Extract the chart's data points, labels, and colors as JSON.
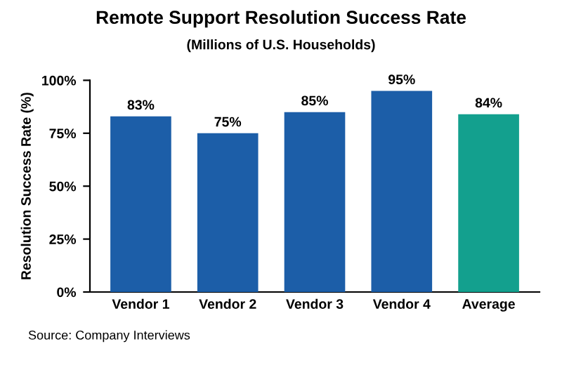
{
  "chart_data": {
    "type": "bar",
    "title": "Remote Support Resolution Success Rate",
    "subtitle": "(Millions of U.S. Households)",
    "ylabel": "Resolution Success Rate (%)",
    "categories": [
      "Vendor 1",
      "Vendor 2",
      "Vendor 3",
      "Vendor 4",
      "Average"
    ],
    "values": [
      83,
      75,
      85,
      95,
      84
    ],
    "colors": [
      "#1c5ea8",
      "#1c5ea8",
      "#1c5ea8",
      "#1c5ea8",
      "#13a08e"
    ],
    "value_labels": [
      "83%",
      "75%",
      "85%",
      "95%",
      "84%"
    ],
    "ylim": [
      0,
      100
    ],
    "yticks": [
      {
        "value": 0,
        "label": "0%"
      },
      {
        "value": 25,
        "label": "25%"
      },
      {
        "value": 50,
        "label": "50%"
      },
      {
        "value": 75,
        "label": "75%"
      },
      {
        "value": 100,
        "label": "100%"
      }
    ],
    "annotations": [
      "Source: Company Interviews"
    ]
  }
}
